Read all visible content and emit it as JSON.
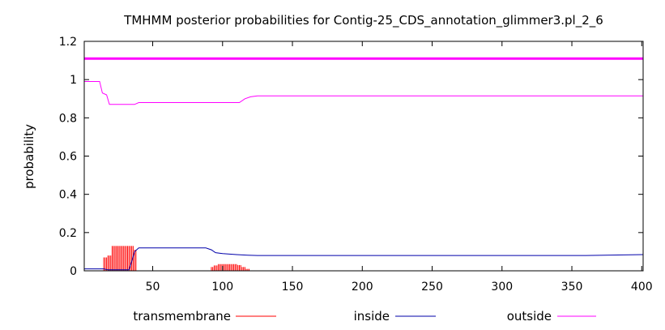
{
  "chart_data": {
    "type": "line",
    "title": "TMHMM posterior probabilities for Contig-25_CDS_annotation_glimmer3.pl_2_6",
    "xlabel": "",
    "ylabel": "probability",
    "xlim": [
      1,
      401
    ],
    "ylim": [
      0,
      1.2
    ],
    "xticks": [
      50,
      100,
      150,
      200,
      250,
      300,
      350,
      400
    ],
    "yticks": [
      0,
      0.2,
      0.4,
      0.6,
      0.8,
      1,
      1.2
    ],
    "ytick_labels": [
      "0",
      "0.2",
      "0.4",
      "0.6",
      "0.8",
      "1",
      "1.2"
    ],
    "grid": false,
    "legend": "bottom",
    "series": [
      {
        "name": "transmembrane",
        "style": "impulses",
        "color": "#ff0000",
        "segments": [
          {
            "x_start": 15,
            "x_end": 17,
            "value": 0.07
          },
          {
            "x_start": 18,
            "x_end": 20,
            "value": 0.08
          },
          {
            "x_start": 21,
            "x_end": 36,
            "value": 0.13
          },
          {
            "x_start": 37,
            "x_end": 38,
            "value": 0.11
          },
          {
            "x_start": 92,
            "x_end": 93,
            "value": 0.02
          },
          {
            "x_start": 94,
            "x_end": 96,
            "value": 0.028
          },
          {
            "x_start": 97,
            "x_end": 110,
            "value": 0.035
          },
          {
            "x_start": 111,
            "x_end": 113,
            "value": 0.03
          },
          {
            "x_start": 114,
            "x_end": 116,
            "value": 0.02
          },
          {
            "x_start": 117,
            "x_end": 119,
            "value": 0.01
          }
        ]
      },
      {
        "name": "inside",
        "style": "line",
        "color": "#0000aa",
        "points": [
          [
            1,
            0.01
          ],
          [
            15,
            0.01
          ],
          [
            18,
            0.005
          ],
          [
            33,
            0.005
          ],
          [
            35,
            0.05
          ],
          [
            37,
            0.1
          ],
          [
            40,
            0.12
          ],
          [
            88,
            0.12
          ],
          [
            92,
            0.11
          ],
          [
            95,
            0.095
          ],
          [
            100,
            0.09
          ],
          [
            110,
            0.085
          ],
          [
            118,
            0.082
          ],
          [
            125,
            0.08
          ],
          [
            360,
            0.08
          ],
          [
            401,
            0.085
          ]
        ]
      },
      {
        "name": "outside",
        "style": "line",
        "color": "#ff00ff",
        "points": [
          [
            1,
            0.99
          ],
          [
            12,
            0.99
          ],
          [
            14,
            0.93
          ],
          [
            17,
            0.92
          ],
          [
            19,
            0.87
          ],
          [
            37,
            0.87
          ],
          [
            40,
            0.88
          ],
          [
            112,
            0.88
          ],
          [
            116,
            0.9
          ],
          [
            120,
            0.91
          ],
          [
            125,
            0.915
          ],
          [
            401,
            0.915
          ]
        ]
      },
      {
        "name": "",
        "style": "line",
        "color": "#ff00ff",
        "points": [
          [
            1,
            1.11
          ],
          [
            401,
            1.11
          ]
        ]
      }
    ]
  }
}
